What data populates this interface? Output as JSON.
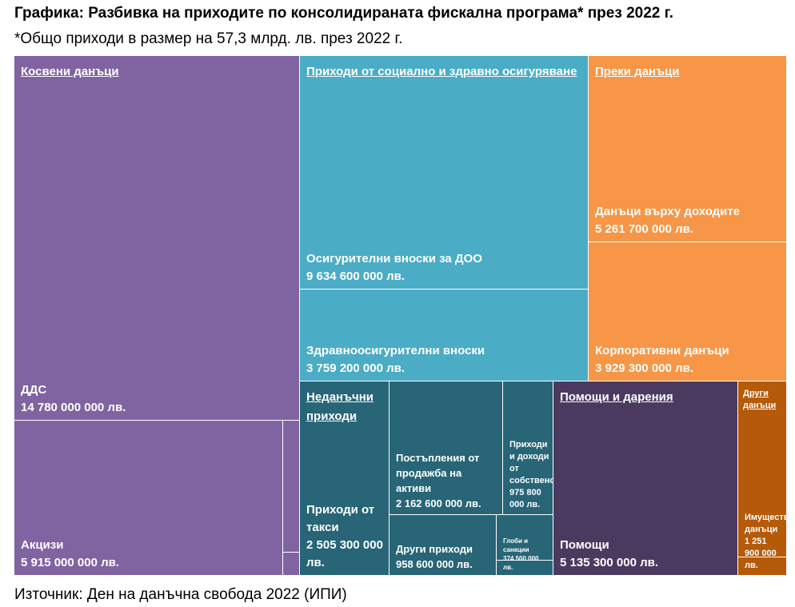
{
  "header": {
    "title": "Графика: Разбивка на приходите по консолидираната фискална програма* през 2022 г.",
    "subtitle": "*Общо приходи в размер на 57,3 млрд. лв. през 2022 г.",
    "source": "Източник: Ден на данъчна свобода 2022 (ИПИ)"
  },
  "colors": {
    "indirect": "#8064a2",
    "social": "#4bacc6",
    "direct": "#f79646",
    "nontax": "#276577",
    "grants": "#4b3a60",
    "other": "#b45a09"
  },
  "chart_data": {
    "type": "treemap",
    "title": "Графика: Разбивка на приходите по консолидираната фискална програма* през 2022 г.",
    "unit": "лв.",
    "groups": [
      {
        "name": "Косвени данъци",
        "items": [
          {
            "name": "ДДС",
            "value": 14780000000,
            "label": "14 780 000 000 лв."
          },
          {
            "name": "Акцизи",
            "value": 5915000000,
            "label": "5 915 000 000 лв."
          }
        ]
      },
      {
        "name": "Приходи от социално и здравно осигуряване",
        "items": [
          {
            "name": "Осигурителни вноски за ДОО",
            "value": 9634600000,
            "label": "9 634 600 000 лв."
          },
          {
            "name": "Здравноосигурителни вноски",
            "value": 3759200000,
            "label": "3 759 200 000 лв."
          }
        ]
      },
      {
        "name": "Преки данъци",
        "items": [
          {
            "name": "Данъци върху доходите",
            "value": 5261700000,
            "label": "5 261 700 000 лв."
          },
          {
            "name": "Корпоративни данъци",
            "value": 3929300000,
            "label": "3 929 300 000 лв."
          }
        ]
      },
      {
        "name": "Неданъчни приходи",
        "items": [
          {
            "name": "Приходи от такси",
            "value": 2505300000,
            "label": "2 505 300 000 лв."
          },
          {
            "name": "Постъпления от продажба на активи",
            "value": 2162600000,
            "label": "2 162 600 000 лв."
          },
          {
            "name": "Приходи и доходи от собственост",
            "value": 975800000,
            "label": "975 800 000 лв."
          },
          {
            "name": "Други приходи",
            "value": 958600000,
            "label": "958 600 000 лв."
          },
          {
            "name": "Глоби и санкции",
            "value": 374500000,
            "label": "374 500 000 лв."
          }
        ]
      },
      {
        "name": "Помощи и дарения",
        "items": [
          {
            "name": "Помощи",
            "value": 5135300000,
            "label": "5 135 300 000 лв."
          }
        ]
      },
      {
        "name": "Други данъци",
        "items": [
          {
            "name": "Имуществени данъци",
            "value": 1251900000,
            "label": "1 251 900 000 лв."
          }
        ]
      }
    ]
  }
}
